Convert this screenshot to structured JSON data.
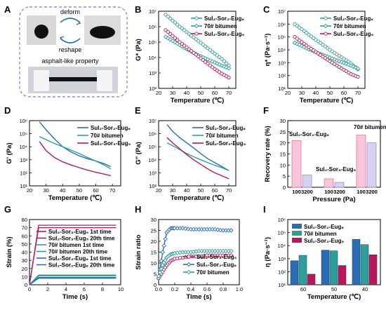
{
  "panel_labels": [
    "A",
    "B",
    "C",
    "D",
    "E",
    "F",
    "G",
    "H",
    "I"
  ],
  "colors": {
    "teal": "#2f9e9a",
    "crimson": "#b5195b",
    "blue": "#2a6db5",
    "dash": "#9a8fcf"
  },
  "panelA": {
    "deform": "deform",
    "reshape": "reshape",
    "caption": "asphalt-like property"
  },
  "chart_data": [
    {
      "id": "B",
      "type": "line",
      "xlabel": "Temperature (℃)",
      "ylabel": "G* (Pa)",
      "xlim": [
        20,
        75
      ],
      "ylim_log": [
        2,
        7
      ],
      "xticks": [
        20,
        30,
        40,
        50,
        60,
        70
      ],
      "yticks_log": [
        2,
        3,
        4,
        5,
        6,
        7
      ],
      "legend_position": "top-right",
      "series": [
        {
          "name": "Sul₂-Sor₂-Eug₆",
          "color": "teal",
          "marker": "circle",
          "x": [
            25,
            30,
            35,
            40,
            45,
            50,
            55,
            60,
            65,
            70
          ],
          "y": [
            6000000,
            2500000,
            1000000,
            450000,
            200000,
            90000,
            40000,
            18000,
            8000,
            3000
          ]
        },
        {
          "name": "70# bitumen",
          "color": "teal",
          "marker": "diamond",
          "x": [
            25,
            30,
            35,
            40,
            45,
            50,
            55,
            60,
            65,
            70
          ],
          "y": [
            220000,
            120000,
            65000,
            35000,
            20000,
            12000,
            7500,
            4800,
            3000,
            2000
          ]
        },
        {
          "name": "Sul₂-Sor₃-Eug₅",
          "color": "crimson",
          "marker": "circle",
          "x": [
            25,
            30,
            35,
            40,
            45,
            50,
            55,
            60,
            65,
            70
          ],
          "y": [
            600000,
            250000,
            100000,
            45000,
            20000,
            9000,
            4000,
            1800,
            900,
            500
          ]
        }
      ]
    },
    {
      "id": "C",
      "type": "line",
      "xlabel": "Temperature (℃)",
      "ylabel": "η* (Pa·s⁻¹)",
      "xlim": [
        20,
        75
      ],
      "ylim_log": [
        1,
        7
      ],
      "xticks": [
        20,
        30,
        40,
        50,
        60,
        70
      ],
      "yticks_log": [
        1,
        2,
        3,
        4,
        5,
        6,
        7
      ],
      "legend_position": "top-right",
      "series": [
        {
          "name": "Sul₂-Sor₂-Eug₆",
          "color": "teal",
          "marker": "circle",
          "x": [
            25,
            30,
            35,
            40,
            45,
            50,
            55,
            60,
            65,
            70
          ],
          "y": [
            1000000,
            400000,
            150000,
            60000,
            25000,
            10000,
            4500,
            2000,
            900,
            300
          ]
        },
        {
          "name": "70# bitumen",
          "color": "teal",
          "marker": "diamond",
          "x": [
            25,
            30,
            35,
            40,
            45,
            50,
            55,
            60,
            65,
            70
          ],
          "y": [
            35000,
            20000,
            11000,
            6500,
            4000,
            2500,
            1500,
            950,
            600,
            350
          ]
        },
        {
          "name": "Sul₂-Sor₃-Eug₅",
          "color": "crimson",
          "marker": "circle",
          "x": [
            25,
            30,
            35,
            40,
            45,
            50,
            55,
            60,
            65,
            70
          ],
          "y": [
            100000,
            40000,
            16000,
            7000,
            3000,
            1300,
            600,
            280,
            130,
            80
          ]
        }
      ]
    },
    {
      "id": "D",
      "type": "line",
      "xlabel": "Temperature (℃)",
      "ylabel": "G' (Pa)",
      "xlim": [
        20,
        75
      ],
      "ylim_log": [
        1,
        6
      ],
      "xticks": [
        20,
        30,
        40,
        50,
        60,
        70
      ],
      "yticks_log": [
        1,
        2,
        3,
        4,
        5,
        6
      ],
      "legend_position": "top-right",
      "series": [
        {
          "name": "Sul₂-Sor₂-Eug₆",
          "color": "blue",
          "x": [
            26,
            30,
            35,
            40,
            45,
            50,
            55,
            60,
            65,
            69
          ],
          "y": [
            800000,
            200000,
            40000,
            10000,
            4000,
            2000,
            1200,
            800,
            500,
            300
          ]
        },
        {
          "name": "70# bitumen",
          "color": "teal",
          "x": [
            26,
            30,
            35,
            40,
            45,
            50,
            55,
            60,
            65,
            69
          ],
          "y": [
            60000,
            35000,
            18000,
            10000,
            5500,
            3000,
            1500,
            800,
            400,
            200
          ]
        },
        {
          "name": "Sul₂-Sor₃-Eug₅",
          "color": "crimson",
          "x": [
            26,
            30,
            35,
            40,
            45,
            50,
            55,
            60,
            65,
            69
          ],
          "y": [
            25000,
            5000,
            1500,
            700,
            400,
            250,
            160,
            110,
            80,
            60
          ]
        }
      ]
    },
    {
      "id": "E",
      "type": "line",
      "xlabel": "Temperature (℃)",
      "ylabel": "G'' (Pa)",
      "xlim": [
        20,
        75
      ],
      "ylim_log": [
        2,
        7
      ],
      "xticks": [
        20,
        30,
        40,
        50,
        60,
        70
      ],
      "yticks_log": [
        2,
        3,
        4,
        5,
        6,
        7
      ],
      "legend_position": "top-right",
      "series": [
        {
          "name": "Sul₂-Sor₂-Eug₆",
          "color": "blue",
          "x": [
            26,
            30,
            35,
            40,
            45,
            50,
            55,
            60,
            65,
            70
          ],
          "y": [
            5000000,
            1500000,
            500000,
            200000,
            80000,
            30000,
            12000,
            6000,
            3000,
            1500
          ]
        },
        {
          "name": "70# bitumen",
          "color": "teal",
          "x": [
            26,
            30,
            35,
            40,
            45,
            50,
            55,
            60,
            65,
            70
          ],
          "y": [
            200000,
            120000,
            60000,
            30000,
            17000,
            10000,
            6000,
            3800,
            2500,
            1500
          ]
        },
        {
          "name": "Sul₂-Sor₃-Eug₅",
          "color": "crimson",
          "x": [
            26,
            30,
            35,
            40,
            45,
            50,
            55,
            60,
            65,
            70
          ],
          "y": [
            500000,
            200000,
            70000,
            25000,
            10000,
            4500,
            2000,
            1000,
            600,
            350
          ]
        }
      ]
    },
    {
      "id": "F",
      "type": "bar",
      "xlabel": "Pressure (Pa)",
      "ylabel": "Recovery rate (%)",
      "ylim": [
        0,
        30
      ],
      "yticks": [
        0,
        5,
        10,
        15,
        20,
        25,
        30
      ],
      "groups": [
        {
          "name": "Sul₂-Sor₂-Eug₆",
          "labels": [
            "100",
            "3200"
          ],
          "values": [
            21,
            5.5
          ]
        },
        {
          "name": "Sul₂-Sor₃-Eug₅",
          "labels": [
            "100",
            "3200"
          ],
          "values": [
            3.8,
            2.2
          ]
        },
        {
          "name": "70# bitumen",
          "labels": [
            "100",
            "3200"
          ],
          "values": [
            23.5,
            20
          ]
        }
      ]
    },
    {
      "id": "G",
      "type": "line",
      "xlabel": "Time (s)",
      "ylabel": "Strain (%)",
      "xlim": [
        0,
        10
      ],
      "ylim": [
        0,
        80
      ],
      "xticks": [
        0,
        2,
        4,
        6,
        8,
        10
      ],
      "yticks": [
        0,
        10,
        20,
        30,
        40,
        50,
        60,
        70,
        80
      ],
      "series": [
        {
          "name": "Sul₂-Sor₃-Eug₅ 1st time",
          "color": "crimson",
          "plateau": 73
        },
        {
          "name": "Sul₂-Sor₃-Eug₅ 20th time",
          "color": "crimson",
          "plateau": 70
        },
        {
          "name": "70# bitumen 1st time",
          "color": "teal",
          "plateau": 12
        },
        {
          "name": "70# bitumen 20th time",
          "color": "teal",
          "plateau": 11
        },
        {
          "name": "Sul₂-Sor₂-Eug₆ 1st time",
          "color": "blue",
          "plateau": 9
        },
        {
          "name": "Sul₂-Sor₂-Eug₆ 20th time",
          "color": "blue",
          "plateau": 8
        }
      ]
    },
    {
      "id": "H",
      "type": "line",
      "xlabel": "Time (s)",
      "ylabel": "Strain ratio",
      "xlim": [
        0,
        1.0
      ],
      "ylim": [
        0,
        30
      ],
      "xticks": [
        0.0,
        0.2,
        0.4,
        0.6,
        0.8,
        1.0
      ],
      "yticks": [
        0,
        5,
        10,
        15,
        20,
        25,
        30
      ],
      "series": [
        {
          "name": "Sul₂-Sor₃-Eug₅",
          "color": "crimson",
          "marker": "circle",
          "x": [
            0.0,
            0.05,
            0.1,
            0.15,
            0.2,
            0.3,
            0.4,
            0.5,
            0.6,
            0.7,
            0.8,
            0.9
          ],
          "y": [
            3,
            6,
            9,
            11,
            12,
            12.5,
            13,
            13,
            13.5,
            13.5,
            13.5,
            13.5
          ]
        },
        {
          "name": "Sul₂-Sor₂-Eug₆",
          "color": "blue",
          "marker": "diamond",
          "x": [
            0.0,
            0.05,
            0.1,
            0.15,
            0.2,
            0.3,
            0.4,
            0.5,
            0.6,
            0.7,
            0.8,
            0.9
          ],
          "y": [
            3,
            15,
            24,
            26,
            26,
            26,
            25.5,
            25.5,
            25.5,
            25.5,
            25,
            25
          ]
        },
        {
          "name": "70# bitumen",
          "color": "teal",
          "marker": "diamond",
          "x": [
            0.0,
            0.05,
            0.1,
            0.15,
            0.2,
            0.3,
            0.4,
            0.5,
            0.6,
            0.7,
            0.8,
            0.9
          ],
          "y": [
            4,
            9,
            12.5,
            14,
            14.5,
            15,
            15,
            15.5,
            15.5,
            15.5,
            15.5,
            15.5
          ]
        }
      ]
    },
    {
      "id": "I",
      "type": "bar",
      "xlabel": "Temperature (℃)",
      "ylabel": "η (Pa·s⁻¹)",
      "ylim_log": [
        1,
        6
      ],
      "yticks_log": [
        1,
        2,
        3,
        4,
        5,
        6
      ],
      "categories": [
        "60",
        "50",
        "40"
      ],
      "series": [
        {
          "name": "Sul₂-Sor₂-Eug₆",
          "color": "blue",
          "values": [
            700,
            4500,
            30000
          ]
        },
        {
          "name": "70# bitumen",
          "color": "teal",
          "values": [
            1800,
            4000,
            12000
          ]
        },
        {
          "name": "Sul₂-Sor₃-Eug₅",
          "color": "crimson",
          "values": [
            65,
            300,
            2000
          ]
        }
      ]
    }
  ]
}
